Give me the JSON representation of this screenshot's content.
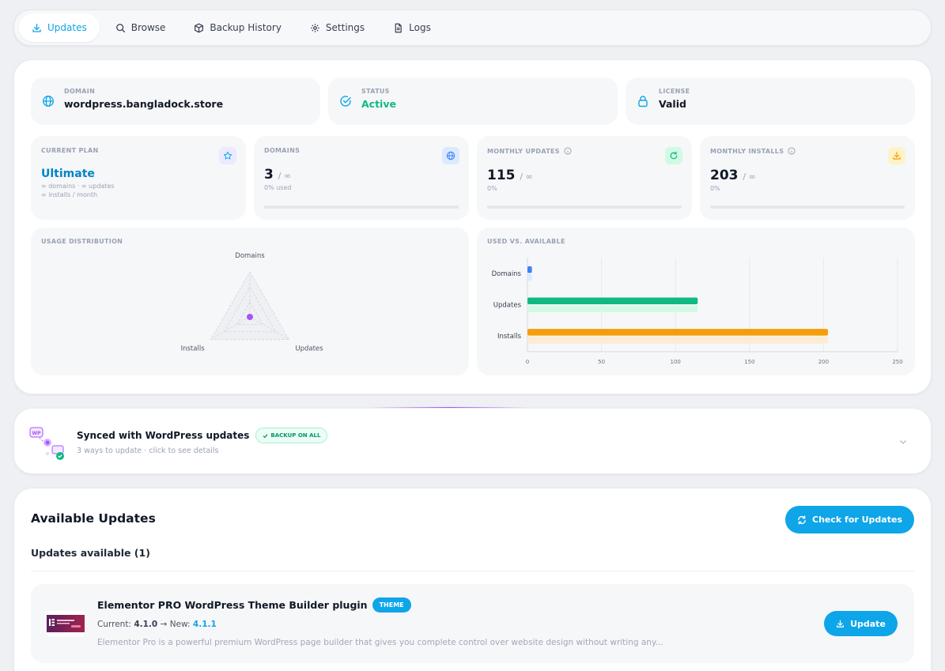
{
  "nav": {
    "tabs": [
      {
        "label": "Updates",
        "icon": "download-icon",
        "active": true
      },
      {
        "label": "Browse",
        "icon": "search-icon"
      },
      {
        "label": "Backup History",
        "icon": "box-icon"
      },
      {
        "label": "Settings",
        "icon": "gear-icon"
      },
      {
        "label": "Logs",
        "icon": "document-icon"
      }
    ]
  },
  "info": {
    "domain": {
      "label": "DOMAIN",
      "value": "wordpress.bangladock.store"
    },
    "status": {
      "label": "STATUS",
      "value": "Active"
    },
    "license": {
      "label": "LICENSE",
      "value": "Valid"
    }
  },
  "plan": {
    "label": "CURRENT PLAN",
    "name": "Ultimate",
    "line1": "∞ domains · ∞ updates",
    "line2": "∞ installs / month"
  },
  "domains": {
    "label": "DOMAINS",
    "value": "3",
    "limit": "/ ∞",
    "sub": "0% used"
  },
  "monthly_updates": {
    "label": "MONTHLY UPDATES",
    "value": "115",
    "limit": "/ ∞",
    "sub": "0%"
  },
  "monthly_installs": {
    "label": "MONTHLY INSTALLS",
    "value": "203",
    "limit": "/ ∞",
    "sub": "0%"
  },
  "usage_title": "USAGE DISTRIBUTION",
  "usedvs_title": "USED VS. AVAILABLE",
  "chart_data": [
    {
      "type": "radar",
      "axes": [
        "Domains",
        "Updates",
        "Installs"
      ],
      "values": [
        0,
        0,
        0
      ]
    },
    {
      "type": "bar",
      "orientation": "horizontal",
      "categories": [
        "Domains",
        "Updates",
        "Installs"
      ],
      "series": [
        {
          "values": [
            3,
            115,
            203
          ],
          "colors": [
            "#3b82f6",
            "#10b981",
            "#f59e0b"
          ]
        },
        {
          "values": [
            3,
            115,
            203
          ],
          "colors": [
            "#dbeafe",
            "#d1fae5",
            "#fdecd2"
          ]
        }
      ],
      "xlim": [
        0,
        250
      ],
      "xticks": [
        0,
        50,
        100,
        150,
        200,
        250
      ],
      "grid": true
    }
  ],
  "sync": {
    "title": "Synced with WordPress updates",
    "badge": "BACKUP ON ALL",
    "sub": "3 ways to update · click to see details"
  },
  "updates": {
    "title": "Available Updates",
    "check_label": "Check for Updates",
    "count_label": "Updates available (1)",
    "item": {
      "name": "Elementor PRO WordPress Theme Builder plugin",
      "badge": "THEME",
      "current_prefix": "Current: ",
      "current": "4.1.0",
      "arrow": " → New: ",
      "new": "4.1.1",
      "description": "Elementor Pro is a powerful premium WordPress page builder that gives you complete control over website design without writing any...",
      "button": "Update"
    }
  }
}
